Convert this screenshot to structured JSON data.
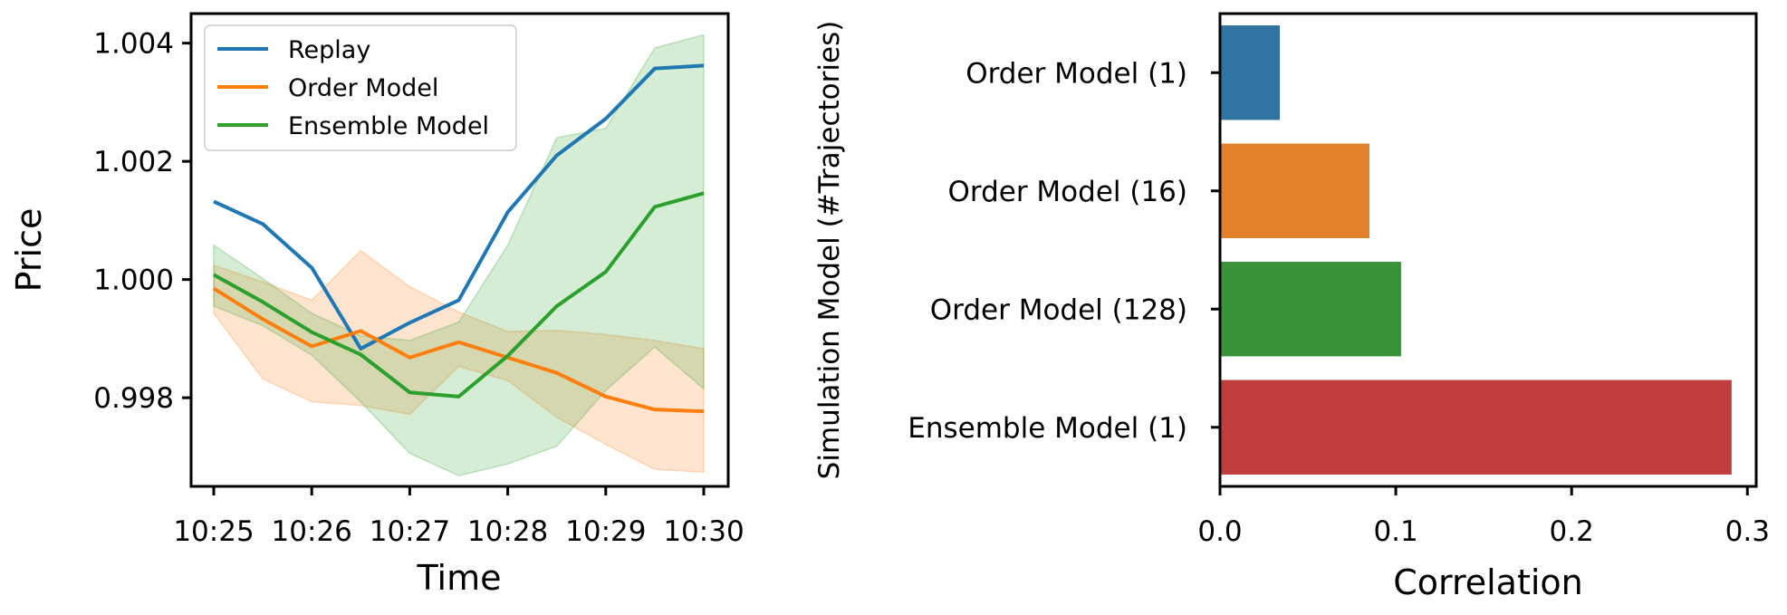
{
  "chart_data": [
    {
      "type": "line",
      "xlabel": "Time",
      "ylabel": "Price",
      "x": [
        "10:25",
        "10:25:30",
        "10:26",
        "10:26:30",
        "10:27",
        "10:27:30",
        "10:28",
        "10:28:30",
        "10:29",
        "10:29:30",
        "10:30"
      ],
      "xticks": [
        "10:25",
        "10:26",
        "10:27",
        "10:28",
        "10:29",
        "10:30"
      ],
      "yticks": [
        "0.998",
        "1.000",
        "1.002",
        "1.004"
      ],
      "ylim": [
        0.9965,
        1.0045
      ],
      "grid": false,
      "legend": "top-left",
      "series": [
        {
          "name": "Replay",
          "color": "#1f77b4",
          "values": [
            1.00132,
            1.00094,
            1.0002,
            0.99883,
            0.99927,
            0.99965,
            1.00114,
            1.0021,
            1.00272,
            1.00357,
            1.00362
          ]
        },
        {
          "name": "Order Model",
          "color": "#ff7f0e",
          "values": [
            0.99985,
            0.99933,
            0.99887,
            0.99913,
            0.99868,
            0.99894,
            0.99868,
            0.99842,
            0.99802,
            0.9978,
            0.99777
          ],
          "band_low": [
            0.99943,
            0.99832,
            0.99793,
            0.99787,
            0.99772,
            0.99853,
            0.99829,
            0.99767,
            0.99721,
            0.99679,
            0.99674
          ],
          "band_high": [
            1.00024,
            0.99996,
            0.99965,
            1.00049,
            0.99988,
            0.99945,
            0.99912,
            0.99914,
            0.99907,
            0.99897,
            0.99883
          ],
          "band_color": "#ff7f0e"
        },
        {
          "name": "Ensemble Model",
          "color": "#2ca02c",
          "values": [
            1.00008,
            0.99962,
            0.99911,
            0.99873,
            0.99809,
            0.99802,
            0.99871,
            0.99955,
            1.00013,
            1.00123,
            1.00146
          ],
          "band_low": [
            0.99955,
            0.99922,
            0.99872,
            0.99793,
            0.99706,
            0.99668,
            0.99688,
            0.99718,
            0.99812,
            0.99886,
            0.99815
          ],
          "band_high": [
            1.00058,
            1.00002,
            0.99943,
            0.99905,
            0.99897,
            0.99928,
            1.00058,
            1.0024,
            1.00256,
            1.00392,
            1.00414
          ],
          "band_color": "#2ca02c"
        }
      ]
    },
    {
      "type": "bar",
      "orientation": "horizontal",
      "xlabel": "Correlation",
      "ylabel": "Simulation Model (#Trajectories)",
      "categories": [
        "Order Model (1)",
        "Order Model (16)",
        "Order Model (128)",
        "Ensemble Model (1)"
      ],
      "values": [
        0.034,
        0.085,
        0.103,
        0.291
      ],
      "colors": [
        "#3274a1",
        "#e1812c",
        "#3a923a",
        "#c03d3e"
      ],
      "xticks": [
        "0.0",
        "0.1",
        "0.2",
        "0.3"
      ],
      "xlim": [
        0,
        0.305
      ],
      "grid": false
    }
  ]
}
